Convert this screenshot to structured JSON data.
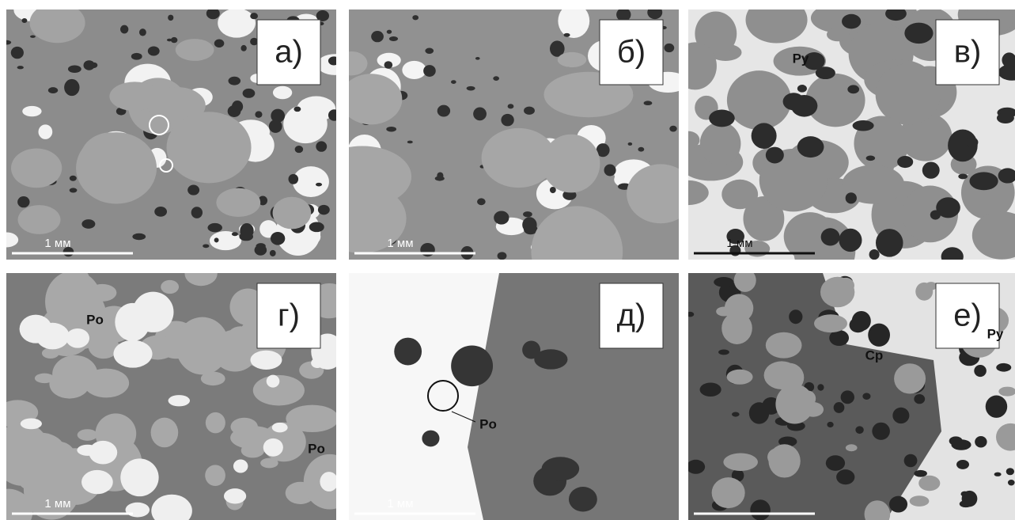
{
  "panels": [
    {
      "label": "а)",
      "scale": "1 мм",
      "annotations": []
    },
    {
      "label": "б)",
      "scale": "1 мм",
      "annotations": []
    },
    {
      "label": "в)",
      "scale": "1 мм",
      "annotations": [
        "Py"
      ]
    },
    {
      "label": "г)",
      "scale": "1 мм",
      "annotations": [
        "Po",
        "Po"
      ]
    },
    {
      "label": "д)",
      "scale": "1 мм",
      "annotations": [
        "Po"
      ]
    },
    {
      "label": "е)",
      "annotations": [
        "Cp",
        "Py"
      ]
    }
  ]
}
